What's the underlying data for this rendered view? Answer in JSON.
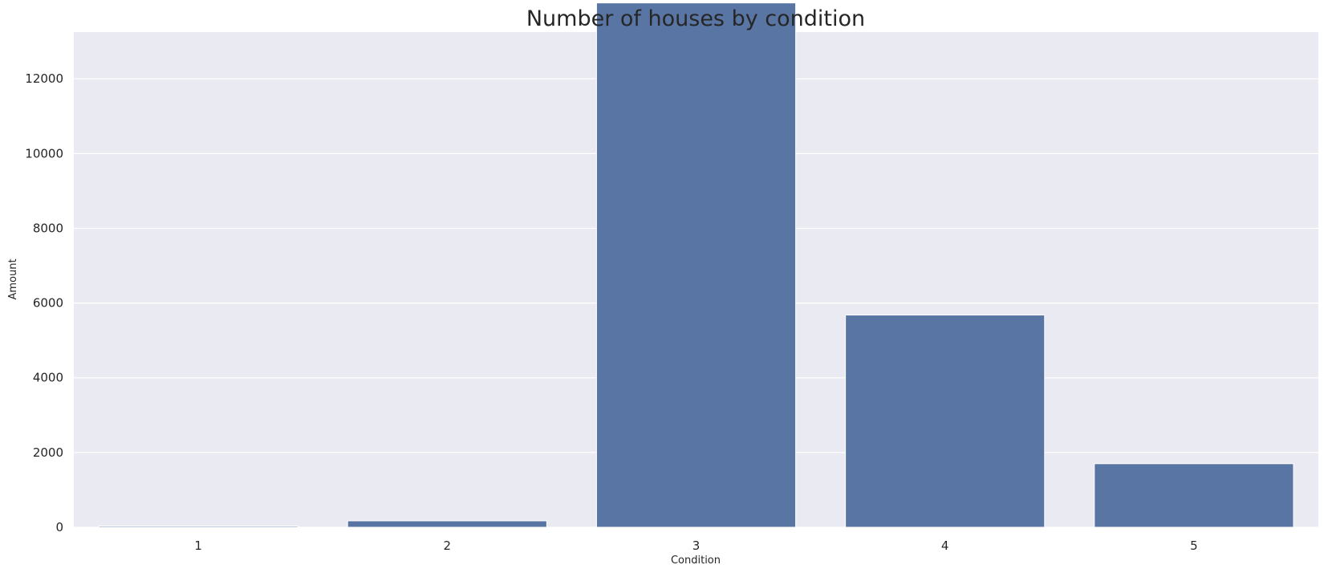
{
  "chart_data": {
    "type": "bar",
    "title": "Number of houses by condition",
    "xlabel": "Condition",
    "ylabel": "Amount",
    "categories": [
      "1",
      "2",
      "3",
      "4",
      "5"
    ],
    "values": [
      30,
      172,
      14031,
      5679,
      1701
    ],
    "ylim": [
      0,
      13250
    ],
    "yticks": [
      0,
      2000,
      4000,
      6000,
      8000,
      10000,
      12000
    ],
    "grid": true,
    "colors": {
      "background": "#eaeaf2",
      "bar": "#5975a4",
      "grid": "#ffffff",
      "text": "#262626"
    }
  }
}
